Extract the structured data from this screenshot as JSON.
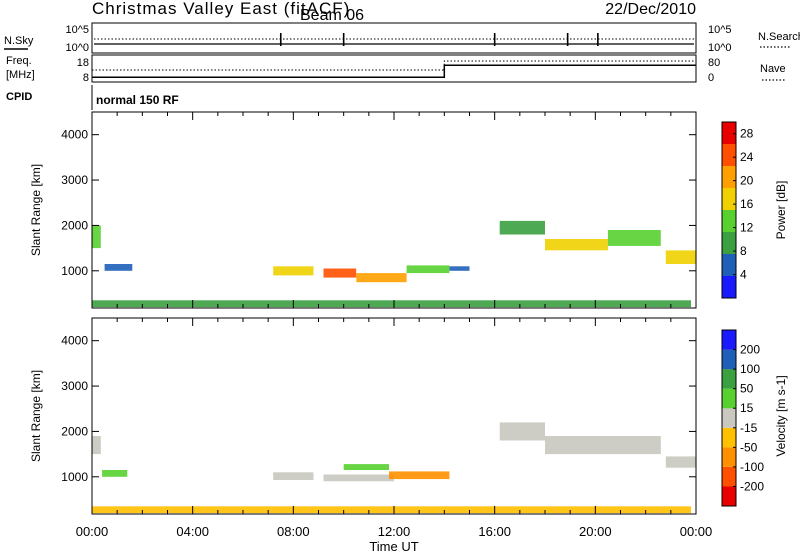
{
  "header": {
    "title": "Christmas Valley East (fitACF)",
    "beam": "Beam 06",
    "date": "22/Dec/2010"
  },
  "top_panels": {
    "nsky_label": "N.Sky",
    "nsearch_label": "N.Search",
    "count_tick_hi": "10^5",
    "count_tick_lo": "10^0",
    "freq_label_1": "Freq.",
    "freq_label_2": "[MHz]",
    "freq_tick_hi": "18",
    "freq_tick_lo": "8",
    "nave_label": "Nave",
    "nave_tick_hi": "80",
    "nave_tick_lo": "0",
    "cpid_label": "CPID",
    "cpid_value": "normal 150 RF"
  },
  "colors": {
    "power": [
      "#1a1aff",
      "#1f5fb8",
      "#3aa040",
      "#58d030",
      "#f0d000",
      "#ffa000",
      "#ff5000",
      "#e80000"
    ],
    "velocity": [
      "#1a1aff",
      "#1f5fb8",
      "#3aa040",
      "#58d030",
      "#c8c8c0",
      "#ffc000",
      "#ff9000",
      "#ff5000",
      "#e80000"
    ],
    "ground_scatter": "#c8c8c0"
  },
  "chart_data": [
    {
      "type": "heatmap",
      "name": "power",
      "ylabel": "Slant Range [km]",
      "xlabel": "Time UT",
      "xlim": [
        0,
        24
      ],
      "ylim": [
        180,
        4500
      ],
      "x_ticks": [
        "00:00",
        "04:00",
        "08:00",
        "12:00",
        "16:00",
        "20:00",
        "00:00"
      ],
      "y_ticks": [
        "1000",
        "2000",
        "3000",
        "4000"
      ],
      "colorbar_label": "Power [dB]",
      "colorbar_ticks": [
        "4",
        "8",
        "12",
        "16",
        "20",
        "24",
        "28"
      ],
      "colorbar_range": [
        0,
        30
      ],
      "regions": [
        {
          "x": [
            0.0,
            0.35
          ],
          "y": [
            1500,
            2000
          ],
          "level": 3
        },
        {
          "x": [
            0.5,
            1.6
          ],
          "y": [
            1000,
            1150
          ],
          "level": 1
        },
        {
          "x": [
            7.2,
            8.8
          ],
          "y": [
            900,
            1100
          ],
          "level": 4
        },
        {
          "x": [
            9.2,
            10.5
          ],
          "y": [
            850,
            1050
          ],
          "level": 6
        },
        {
          "x": [
            10.5,
            12.5
          ],
          "y": [
            750,
            950
          ],
          "level": 5
        },
        {
          "x": [
            12.5,
            14.2
          ],
          "y": [
            950,
            1120
          ],
          "level": 3
        },
        {
          "x": [
            14.2,
            15.0
          ],
          "y": [
            1000,
            1100
          ],
          "level": 1
        },
        {
          "x": [
            0.0,
            23.8
          ],
          "y": [
            200,
            350
          ],
          "level": 2
        },
        {
          "x": [
            16.2,
            18.0
          ],
          "y": [
            1800,
            2100
          ],
          "level": 2
        },
        {
          "x": [
            18.0,
            20.5
          ],
          "y": [
            1450,
            1700
          ],
          "level": 4
        },
        {
          "x": [
            20.5,
            22.6
          ],
          "y": [
            1550,
            1900
          ],
          "level": 3
        },
        {
          "x": [
            22.8,
            24.0
          ],
          "y": [
            1150,
            1450
          ],
          "level": 4
        }
      ]
    },
    {
      "type": "heatmap",
      "name": "velocity",
      "ylabel": "Slant Range [km]",
      "xlabel": "Time UT",
      "xlim": [
        0,
        24
      ],
      "ylim": [
        180,
        4500
      ],
      "x_ticks": [
        "00:00",
        "04:00",
        "08:00",
        "12:00",
        "16:00",
        "20:00",
        "00:00"
      ],
      "y_ticks": [
        "1000",
        "2000",
        "3000",
        "4000"
      ],
      "colorbar_label": "Velocity [m s-1]",
      "colorbar_ticks": [
        "200",
        "100",
        "50",
        "15",
        "-15",
        "-50",
        "-100",
        "-200"
      ],
      "colorbar_range": [
        -250,
        250
      ],
      "regions": [
        {
          "x": [
            0.0,
            0.35
          ],
          "y": [
            1500,
            1900
          ],
          "level": 4
        },
        {
          "x": [
            0.4,
            1.4
          ],
          "y": [
            1000,
            1150
          ],
          "level": 3
        },
        {
          "x": [
            7.2,
            8.8
          ],
          "y": [
            930,
            1100
          ],
          "level": 4
        },
        {
          "x": [
            9.2,
            12.0
          ],
          "y": [
            900,
            1050
          ],
          "level": 4
        },
        {
          "x": [
            10.0,
            11.8
          ],
          "y": [
            1150,
            1280
          ],
          "level": 3
        },
        {
          "x": [
            11.8,
            14.2
          ],
          "y": [
            950,
            1120
          ],
          "level": 6
        },
        {
          "x": [
            0.0,
            23.8
          ],
          "y": [
            200,
            350
          ],
          "level": 5
        },
        {
          "x": [
            16.2,
            18.0
          ],
          "y": [
            1800,
            2200
          ],
          "level": 4
        },
        {
          "x": [
            18.0,
            22.6
          ],
          "y": [
            1500,
            1900
          ],
          "level": 4
        },
        {
          "x": [
            22.8,
            24.0
          ],
          "y": [
            1200,
            1450
          ],
          "level": 4
        }
      ]
    }
  ],
  "aux_series": {
    "nave": [
      {
        "t": 0,
        "v": 40
      },
      {
        "t": 14,
        "v": 40
      },
      {
        "t": 14,
        "v": 70
      },
      {
        "t": 24,
        "v": 70
      }
    ],
    "freq": [
      {
        "t": 0,
        "v": 10
      },
      {
        "t": 14,
        "v": 10
      },
      {
        "t": 14,
        "v": 15
      },
      {
        "t": 24,
        "v": 15
      }
    ]
  }
}
